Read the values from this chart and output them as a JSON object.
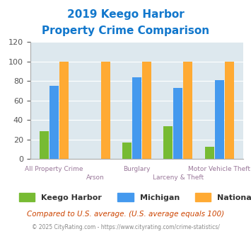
{
  "title_line1": "2019 Keego Harbor",
  "title_line2": "Property Crime Comparison",
  "categories": [
    "All Property Crime",
    "Arson",
    "Burglary",
    "Larceny & Theft",
    "Motor Vehicle Theft"
  ],
  "keego_harbor": [
    29,
    0,
    17,
    34,
    13
  ],
  "michigan": [
    75,
    0,
    84,
    73,
    81
  ],
  "national": [
    100,
    100,
    100,
    100,
    100
  ],
  "keego_color": "#77bb33",
  "michigan_color": "#4499ee",
  "national_color": "#ffaa33",
  "ylabel_max": 120,
  "yticks": [
    0,
    20,
    40,
    60,
    80,
    100,
    120
  ],
  "bg_color": "#dde8ee",
  "title_color": "#1177cc",
  "xlabel_color": "#997799",
  "footnote": "Compared to U.S. average. (U.S. average equals 100)",
  "copyright": "© 2025 CityRating.com - https://www.cityrating.com/crime-statistics/",
  "footnote_color": "#cc4400",
  "copyright_color": "#888888",
  "legend_labels": [
    "Keego Harbor",
    "Michigan",
    "National"
  ]
}
